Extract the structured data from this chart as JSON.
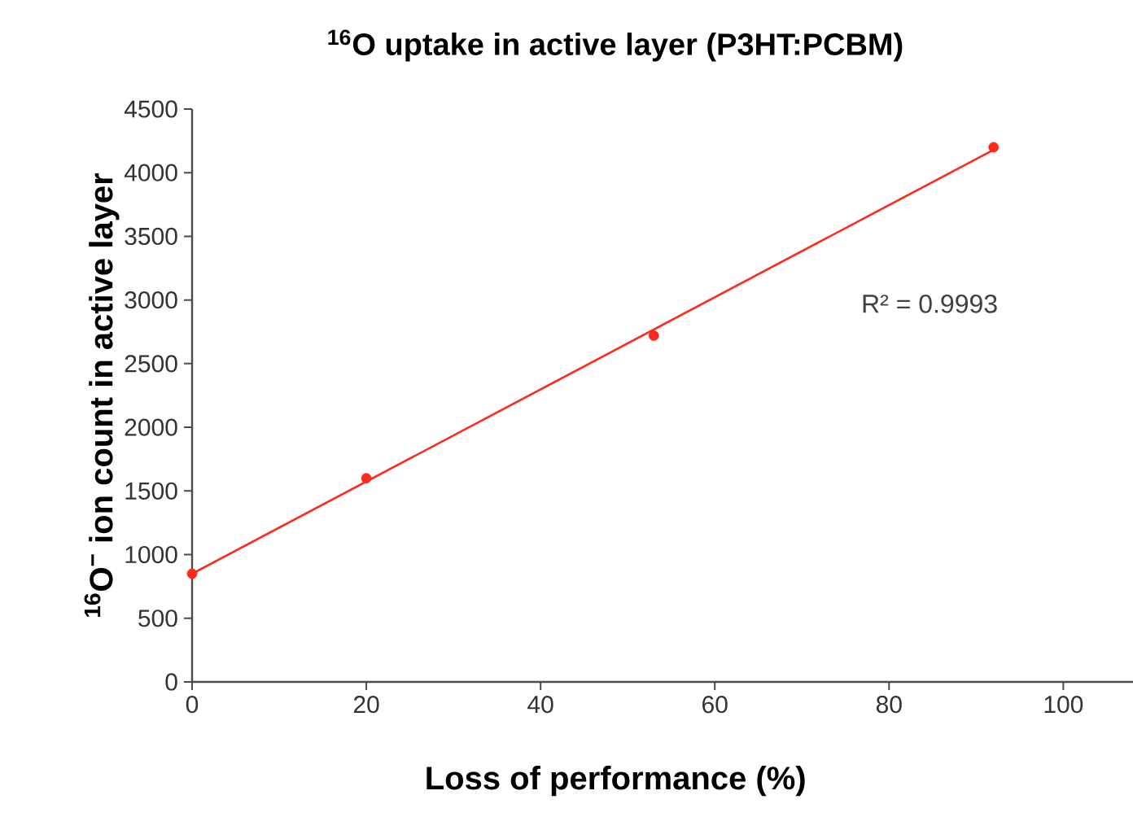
{
  "chart_data": {
    "type": "scatter",
    "title": "$^{16}$O uptake in active layer (P3HT:PCBM)",
    "xlabel": "Loss of performance (%)",
    "ylabel": "$^{16}$O$^{−}$ ion count in active layer",
    "x": [
      0,
      20,
      53,
      92
    ],
    "series": [
      {
        "color": "#ff2a1a",
        "values": [
          850,
          1600,
          2720,
          4200
        ],
        "marker": "circle"
      },
      {
        "type": "line",
        "color": "#ff2a1a",
        "x": [
          0,
          92
        ],
        "values": [
          850,
          4180
        ],
        "marker": "none"
      }
    ],
    "annotations": [
      "R² = 0.9993"
    ],
    "xlim": [
      0,
      108
    ],
    "xticks": [
      0,
      20,
      40,
      60,
      80,
      100
    ],
    "ylim": [
      0,
      4500
    ],
    "yticks": [
      0,
      500,
      1000,
      1500,
      2000,
      2500,
      3000,
      3500,
      4000,
      4500
    ]
  }
}
